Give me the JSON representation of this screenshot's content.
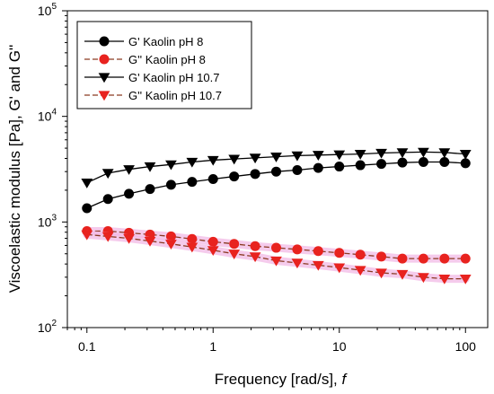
{
  "chart_data": {
    "type": "line",
    "xlabel_text": "Frequency [rad/s], ",
    "xlabel_italic": "f",
    "ylabel": "Viscoelastic modulus [Pa], G' and G''",
    "x_scale": "log",
    "y_scale": "log",
    "xlim": [
      0.07,
      150
    ],
    "ylim": [
      100,
      100000
    ],
    "grid": false,
    "legend_position": "top-left",
    "x_ticks": [
      {
        "value": 0.1,
        "label": "0.1"
      },
      {
        "value": 1,
        "label": "1"
      },
      {
        "value": 10,
        "label": "10"
      },
      {
        "value": 100,
        "label": "100"
      }
    ],
    "y_ticks": [
      {
        "value": 100,
        "base": "10",
        "exp": "2"
      },
      {
        "value": 1000,
        "base": "10",
        "exp": "3"
      },
      {
        "value": 10000,
        "base": "10",
        "exp": "4"
      },
      {
        "value": 100000,
        "base": "10",
        "exp": "5"
      }
    ],
    "x": [
      0.1,
      0.1468,
      0.2154,
      0.3162,
      0.4642,
      0.6813,
      1,
      1.468,
      2.154,
      3.162,
      4.642,
      6.813,
      10,
      14.68,
      21.54,
      31.62,
      46.42,
      68.13,
      100
    ],
    "series": [
      {
        "name": "G'  Kaolin pH 8",
        "marker": "circle",
        "color": "#000000",
        "line_style": "solid",
        "values": [
          1350,
          1650,
          1850,
          2050,
          2250,
          2400,
          2550,
          2700,
          2850,
          3000,
          3100,
          3250,
          3350,
          3450,
          3550,
          3650,
          3700,
          3700,
          3600
        ]
      },
      {
        "name": "G'' Kaolin pH 8",
        "marker": "circle",
        "color": "#e8231f",
        "line_style": "dashed",
        "values": [
          820,
          820,
          790,
          760,
          730,
          690,
          650,
          620,
          590,
          570,
          550,
          530,
          510,
          490,
          470,
          450,
          450,
          450,
          450
        ]
      },
      {
        "name": "G'  Kaolin pH 10.7",
        "marker": "triangle-down",
        "color": "#000000",
        "line_style": "solid",
        "values": [
          2350,
          2900,
          3150,
          3350,
          3500,
          3700,
          3850,
          3950,
          4050,
          4150,
          4250,
          4300,
          4350,
          4400,
          4500,
          4550,
          4600,
          4550,
          4400
        ]
      },
      {
        "name": "G'' Kaolin pH 10.7",
        "marker": "triangle-down",
        "color": "#e8231f",
        "line_style": "dashed",
        "values": [
          760,
          730,
          700,
          660,
          620,
          580,
          540,
          500,
          470,
          430,
          410,
          390,
          370,
          350,
          330,
          320,
          300,
          290,
          290
        ]
      }
    ]
  }
}
